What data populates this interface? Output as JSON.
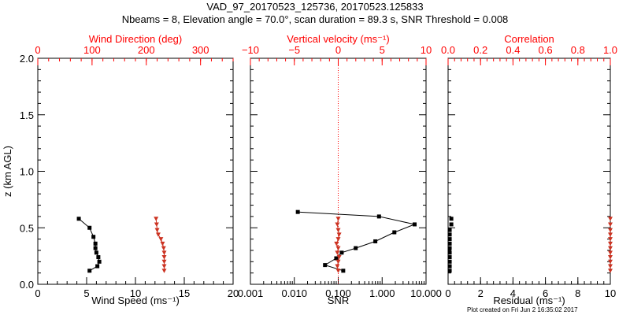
{
  "title_line1": "VAD_97_20170523_125736, 20170523.125833",
  "title_line2": "Nbeams = 8, Elevation angle = 70.0°, scan duration = 89.3 s, SNR Threshold = 0.008",
  "footnote": "Plot created on Fri Jun  2 16:35:02 2017",
  "colors": {
    "primary": "#000000",
    "secondary": "#cc3322",
    "tick_red": "#ff0000"
  },
  "chart_data": [
    {
      "type": "line",
      "panel": "wind",
      "ylabel": "z (km AGL)",
      "ylim": [
        0,
        2.0
      ],
      "yticks": [
        "0.0",
        "0.5",
        "1.0",
        "1.5",
        "2.0"
      ],
      "bottom_axis": {
        "label": "Wind Speed (ms⁻¹)",
        "range": [
          0,
          20
        ],
        "ticks": [
          "0",
          "5",
          "10",
          "15",
          "20"
        ]
      },
      "top_axis": {
        "label": "Wind Direction (deg)",
        "range": [
          0,
          360
        ],
        "ticks": [
          "0",
          "100",
          "200",
          "300"
        ]
      },
      "series": [
        {
          "name": "Wind Speed",
          "axis": "bottom",
          "marker": "square",
          "color": "#000000",
          "points": [
            [
              5.3,
              0.12
            ],
            [
              6.1,
              0.16
            ],
            [
              6.3,
              0.2
            ],
            [
              6.2,
              0.24
            ],
            [
              6.0,
              0.28
            ],
            [
              5.9,
              0.32
            ],
            [
              5.9,
              0.36
            ],
            [
              5.7,
              0.42
            ],
            [
              5.3,
              0.5
            ],
            [
              4.2,
              0.58
            ]
          ]
        },
        {
          "name": "Wind Direction",
          "axis": "top",
          "marker": "triangle",
          "color": "#cc3322",
          "points": [
            [
              233,
              0.12
            ],
            [
              233,
              0.16
            ],
            [
              233,
              0.2
            ],
            [
              233,
              0.24
            ],
            [
              233,
              0.28
            ],
            [
              232,
              0.32
            ],
            [
              230,
              0.36
            ],
            [
              227,
              0.4
            ],
            [
              222,
              0.44
            ],
            [
              220,
              0.48
            ],
            [
              219,
              0.53
            ],
            [
              218,
              0.58
            ]
          ]
        }
      ]
    },
    {
      "type": "line",
      "panel": "snr-vertical-velocity",
      "ylim": [
        0,
        2.0
      ],
      "bottom_axis": {
        "label": "SNR",
        "scale": "log",
        "range": [
          0.001,
          10
        ],
        "ticks": [
          "0.001",
          "0.010",
          "0.100",
          "1.000",
          "10.000"
        ]
      },
      "top_axis": {
        "label": "Vertical velocity (ms⁻¹)",
        "range": [
          -10,
          10
        ],
        "ticks": [
          "−10",
          "−5",
          "0",
          "5",
          "10"
        ]
      },
      "reference_line": {
        "axis": "top",
        "value": 0,
        "style": "dotted"
      },
      "series": [
        {
          "name": "SNR",
          "axis": "bottom",
          "marker": "square",
          "color": "#000000",
          "points": [
            [
              0.13,
              0.12
            ],
            [
              0.05,
              0.17
            ],
            [
              0.09,
              0.23
            ],
            [
              0.12,
              0.28
            ],
            [
              0.25,
              0.32
            ],
            [
              0.7,
              0.38
            ],
            [
              1.9,
              0.46
            ],
            [
              5.5,
              0.53
            ],
            [
              0.85,
              0.6
            ],
            [
              0.012,
              0.64
            ]
          ]
        },
        {
          "name": "Vertical velocity",
          "axis": "top",
          "marker": "triangle",
          "color": "#cc3322",
          "points": [
            [
              0.0,
              0.12
            ],
            [
              -0.1,
              0.16
            ],
            [
              0.0,
              0.2
            ],
            [
              0.1,
              0.24
            ],
            [
              -0.1,
              0.28
            ],
            [
              0.0,
              0.32
            ],
            [
              -0.2,
              0.36
            ],
            [
              0.0,
              0.4
            ],
            [
              0.1,
              0.44
            ],
            [
              0.0,
              0.48
            ],
            [
              -0.1,
              0.53
            ],
            [
              0.0,
              0.58
            ]
          ]
        }
      ]
    },
    {
      "type": "scatter",
      "panel": "residual-correlation",
      "ylim": [
        0,
        2.0
      ],
      "bottom_axis": {
        "label": "Residual (ms⁻¹)",
        "range": [
          0,
          10
        ],
        "ticks": [
          "0",
          "2",
          "4",
          "6",
          "8",
          "10"
        ]
      },
      "top_axis": {
        "label": "Correlation",
        "range": [
          0,
          1.0
        ],
        "ticks": [
          "0.0",
          "0.2",
          "0.4",
          "0.6",
          "0.8",
          "1.0"
        ]
      },
      "series": [
        {
          "name": "Residual",
          "axis": "bottom",
          "marker": "square",
          "color": "#000000",
          "points": [
            [
              0.1,
              0.12
            ],
            [
              0.1,
              0.16
            ],
            [
              0.1,
              0.2
            ],
            [
              0.1,
              0.24
            ],
            [
              0.1,
              0.28
            ],
            [
              0.1,
              0.32
            ],
            [
              0.1,
              0.36
            ],
            [
              0.1,
              0.4
            ],
            [
              0.1,
              0.44
            ],
            [
              0.1,
              0.48
            ],
            [
              0.2,
              0.53
            ],
            [
              0.2,
              0.58
            ]
          ]
        },
        {
          "name": "Correlation",
          "axis": "top",
          "marker": "triangle",
          "color": "#cc3322",
          "points": [
            [
              1.0,
              0.12
            ],
            [
              1.0,
              0.16
            ],
            [
              1.0,
              0.2
            ],
            [
              1.0,
              0.24
            ],
            [
              1.0,
              0.28
            ],
            [
              1.0,
              0.32
            ],
            [
              1.0,
              0.36
            ],
            [
              1.0,
              0.4
            ],
            [
              1.0,
              0.44
            ],
            [
              1.0,
              0.48
            ],
            [
              1.0,
              0.53
            ],
            [
              1.0,
              0.58
            ]
          ]
        }
      ]
    }
  ]
}
